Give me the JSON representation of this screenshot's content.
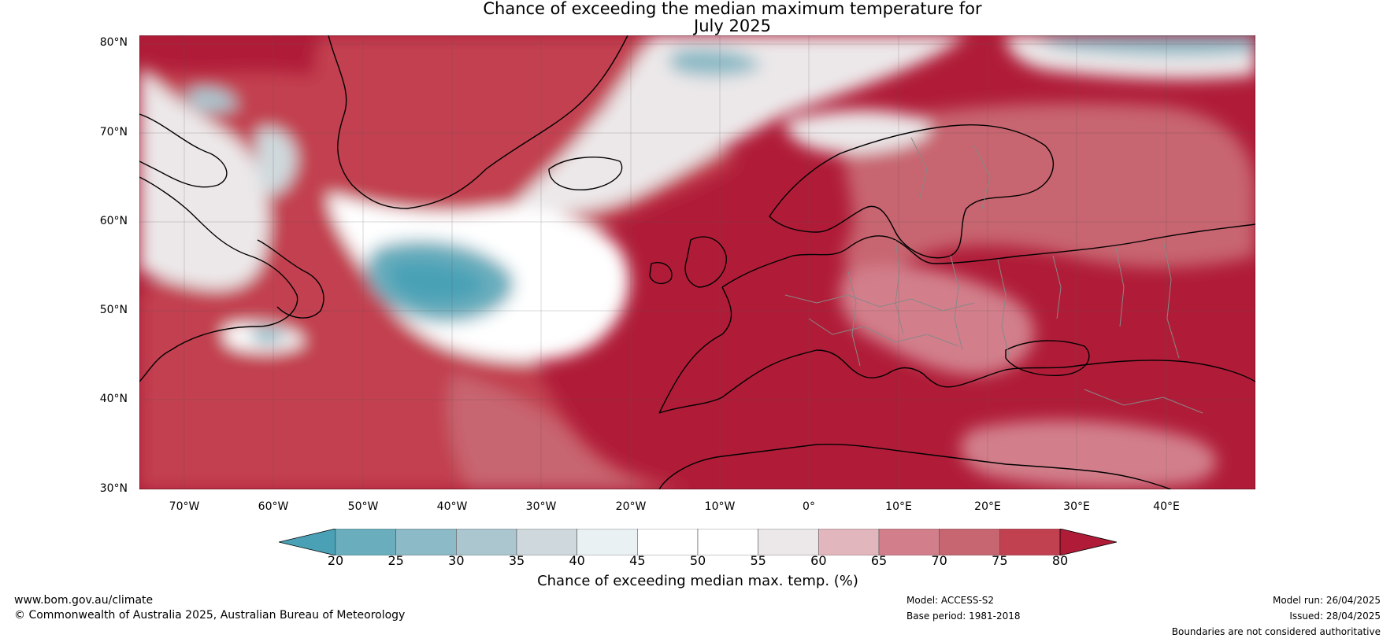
{
  "title_line1": "Chance of exceeding the median maximum temperature for",
  "title_line2": "July 2025",
  "lat_labels": [
    "80°N",
    "70°N",
    "60°N",
    "50°N",
    "40°N",
    "30°N"
  ],
  "lon_labels": [
    "70°W",
    "60°W",
    "50°W",
    "40°W",
    "30°W",
    "20°W",
    "10°W",
    "0°",
    "10°E",
    "20°E",
    "30°E",
    "40°E"
  ],
  "map": {
    "lon_range": [
      -75,
      50
    ],
    "lat_range": [
      30,
      81
    ],
    "colors": {
      "ocean_warm": "#b01c38",
      "land_line": "#000000",
      "border_line": "#888888"
    }
  },
  "colorbar": {
    "ticks": [
      "20",
      "25",
      "30",
      "35",
      "40",
      "45",
      "50",
      "55",
      "60",
      "65",
      "70",
      "75",
      "80"
    ],
    "colors": [
      "#4aa1b6",
      "#6aaebd",
      "#8cbac6",
      "#abc6cf",
      "#cfd9dd",
      "#eaf1f3",
      "#ffffff",
      "#ffffff",
      "#ece8e9",
      "#e2b6bd",
      "#d27f8b",
      "#c76570",
      "#c24150",
      "#b01c38"
    ],
    "label": "Chance of exceeding median max. temp. (%)"
  },
  "footer": {
    "url": "www.bom.gov.au/climate",
    "copyright": "© Commonwealth of Australia 2025, Australian Bureau of Meteorology",
    "model": "Model: ACCESS-S2",
    "base_period": "Base period: 1981-2018",
    "model_run": "Model run: 26/04/2025",
    "issued": "Issued: 28/04/2025",
    "disclaimer": "Boundaries are not considered authoritative"
  }
}
